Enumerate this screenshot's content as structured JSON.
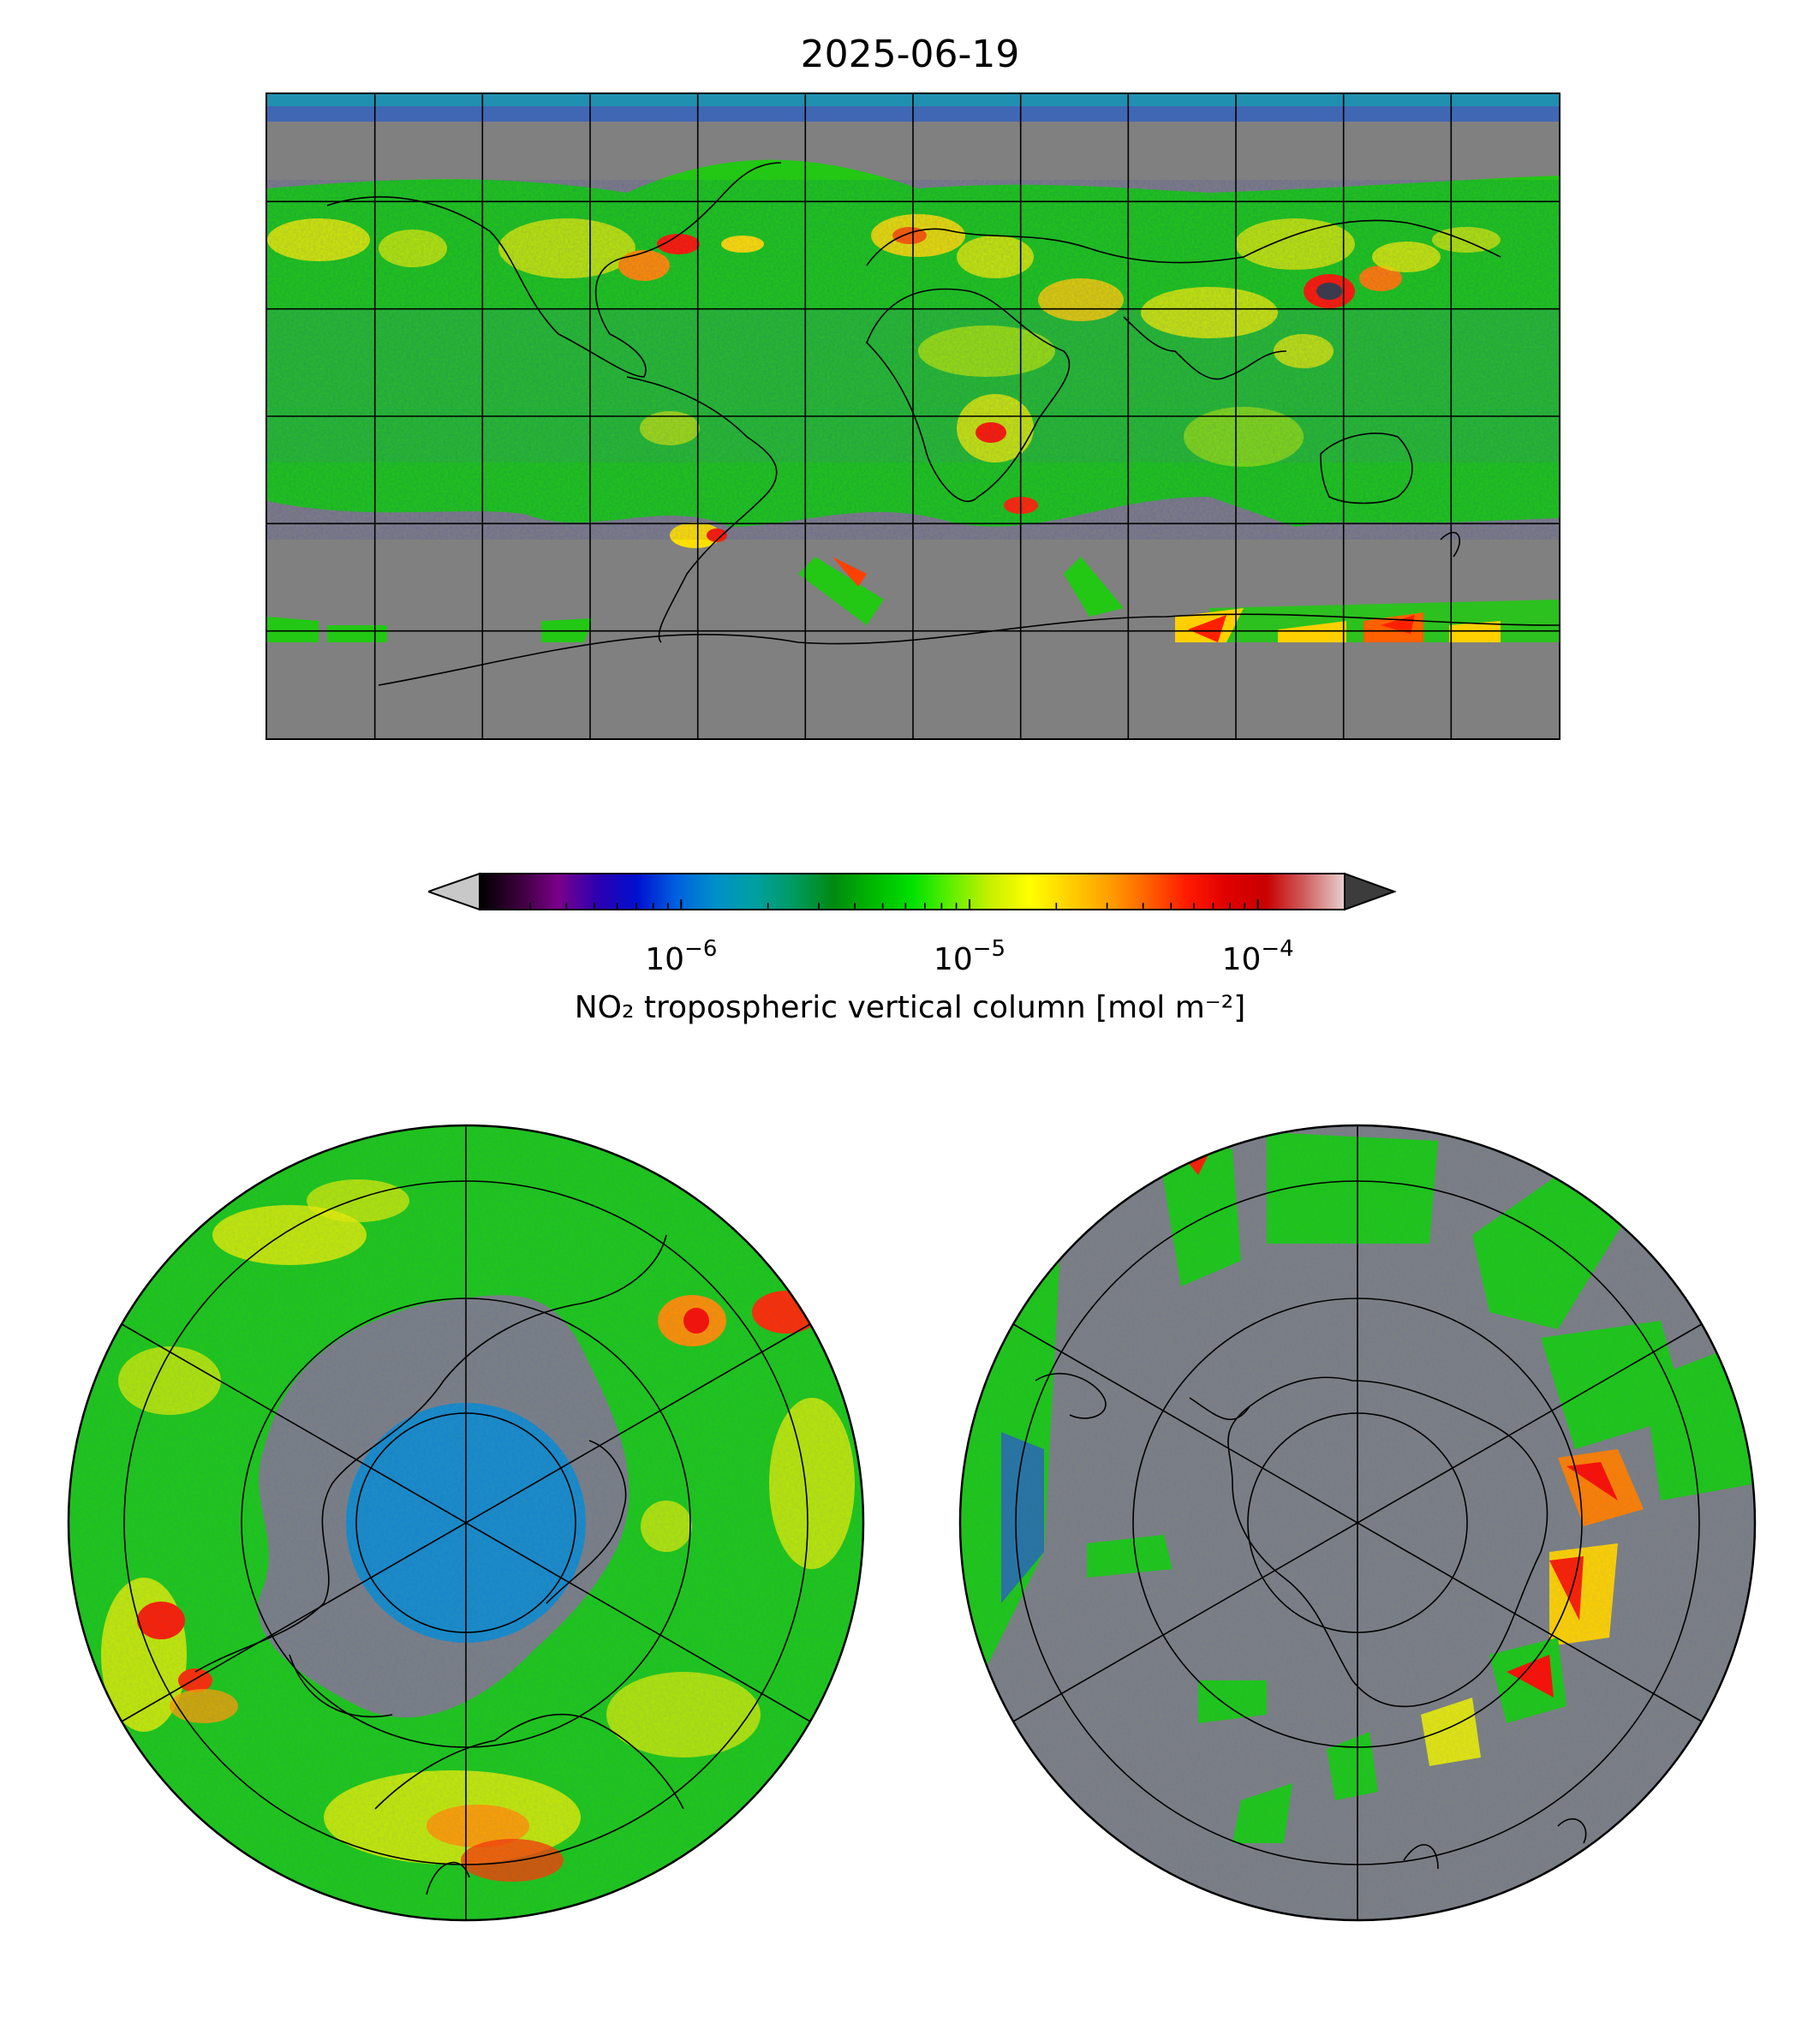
{
  "title": "2025-06-19",
  "colorbar": {
    "label": "NO₂ tropospheric vertical column [mol m⁻²]",
    "scale": "log",
    "range": [
      2e-07,
      0.0002
    ],
    "extend": "both",
    "ticks": [
      {
        "value": 1e-06,
        "base": "10",
        "exp": "−6"
      },
      {
        "value": 1e-05,
        "base": "10",
        "exp": "−5"
      },
      {
        "value": 0.0001,
        "base": "10",
        "exp": "−4"
      }
    ],
    "colors": [
      "#000000",
      "#3a003a",
      "#7a008a",
      "#2c00b0",
      "#0010d0",
      "#0060e0",
      "#0090c8",
      "#00a0a0",
      "#009a60",
      "#008a10",
      "#00b800",
      "#00e000",
      "#60f000",
      "#c8f000",
      "#ffff00",
      "#ffd000",
      "#ffa000",
      "#ff6000",
      "#ff1a00",
      "#e00000",
      "#c80000",
      "#d06060",
      "#e8d0d0"
    ],
    "under_color": "#c8c8c8",
    "over_color": "#3c3c3c"
  },
  "maps": {
    "global": {
      "projection": "PlateCarree",
      "gridlines_deg": 30
    },
    "north_polar": {
      "projection": "NorthPolarStereo"
    },
    "south_polar": {
      "projection": "SouthPolarStereo"
    },
    "colors": {
      "missing": "#808080",
      "coast": "#000000"
    }
  }
}
